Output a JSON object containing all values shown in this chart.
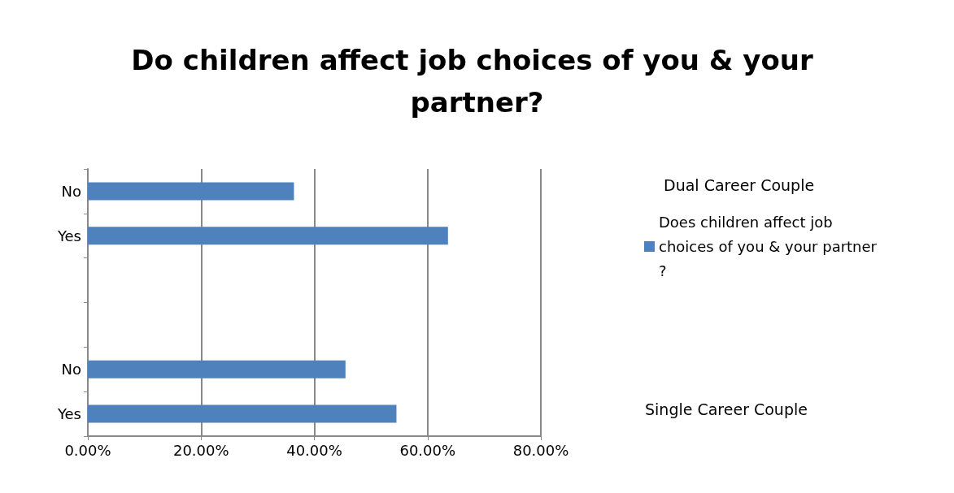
{
  "chart_data": {
    "type": "bar",
    "orientation": "horizontal",
    "title": "Do children affect job choices of you & your partner?",
    "categories": [
      "No",
      "Yes",
      null,
      null,
      "No",
      "Yes"
    ],
    "series": [
      {
        "name": "Does children affect job choices of you & your partner?",
        "color": "#4f81bd",
        "values": [
          36.4,
          63.6,
          null,
          null,
          45.5,
          54.5
        ]
      }
    ],
    "xlim": [
      0,
      80
    ],
    "xticks": [
      {
        "value": 0,
        "label": "0.00%"
      },
      {
        "value": 20,
        "label": "20.00%"
      },
      {
        "value": 40,
        "label": "40.00%"
      },
      {
        "value": 60,
        "label": "60.00%"
      },
      {
        "value": 80,
        "label": "80.00%"
      }
    ],
    "grid": "x",
    "legend": "right",
    "annotations": [
      "Dual Career Couple",
      "Single Career Couple"
    ]
  }
}
